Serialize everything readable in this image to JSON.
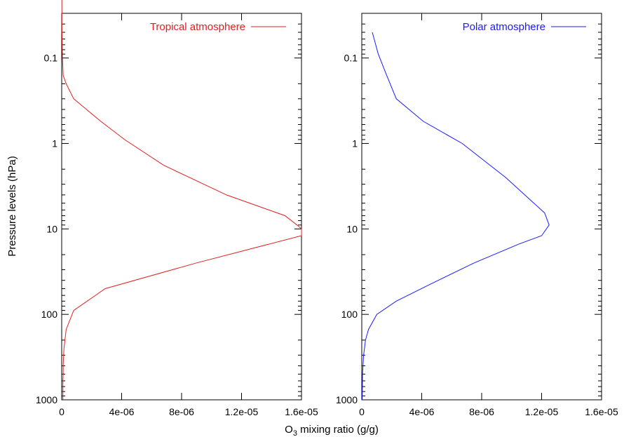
{
  "figure": {
    "ylabel": "Pressure levels (hPa)",
    "xlabel_main": "O",
    "xlabel_sub": "3",
    "xlabel_rest": " mixing ratio (g/g)"
  },
  "chart_data": [
    {
      "type": "line",
      "title": "",
      "xlabel": "O3 mixing ratio (g/g)",
      "ylabel": "Pressure levels (hPa)",
      "xlim": [
        0,
        1.6e-05
      ],
      "ylim": [
        1000,
        0.03
      ],
      "yscale": "log",
      "y_inverted": true,
      "grid": false,
      "legend_position": "top-right",
      "xticks": [
        "0",
        "4e-06",
        "8e-06",
        "1.2e-05",
        "1.6e-05"
      ],
      "yticks": [
        "0.1",
        "1",
        "10",
        "100",
        "1000"
      ],
      "series": [
        {
          "name": "Tropical atmosphere",
          "color": "#e02020",
          "x": [
            1e-08,
            2e-08,
            5e-08,
            1e-07,
            3e-07,
            8e-07,
            2.6e-06,
            4.2e-06,
            6.8e-06,
            1.1e-05,
            1.49e-05,
            1.57e-05,
            1.6e-05,
            1.6e-05,
            9e-06,
            2.9e-06,
            8e-07,
            3e-07,
            1.5e-07,
            1e-07,
            1e-07,
            8e-08,
            8e-08,
            8e-08,
            8e-08
          ],
          "y": [
            0.02,
            0.05,
            0.1,
            0.16,
            0.2,
            0.3,
            0.55,
            0.9,
            1.8,
            4,
            7,
            9,
            10,
            12,
            25,
            50,
            90,
            150,
            250,
            400,
            500,
            600,
            700,
            850,
            1000
          ]
        },
        {
          "name": "Polar atmosphere",
          "color": "#1a1aff",
          "x": [
            7e-07,
            1.1e-06,
            1.6e-06,
            2.3e-06,
            4.1e-06,
            6.7e-06,
            9.6e-06,
            1.22e-05,
            1.25e-05,
            1.2e-05,
            1.05e-05,
            7.5e-06,
            4.5e-06,
            2.3e-06,
            1e-06,
            4.5e-07,
            2.5e-07,
            1.2e-07,
            5e-08,
            3e-08
          ],
          "y": [
            0.05,
            0.09,
            0.15,
            0.3,
            0.55,
            1,
            2.5,
            6.5,
            9,
            12,
            15,
            25,
            45,
            70,
            100,
            150,
            200,
            300,
            500,
            1000
          ]
        }
      ]
    }
  ]
}
